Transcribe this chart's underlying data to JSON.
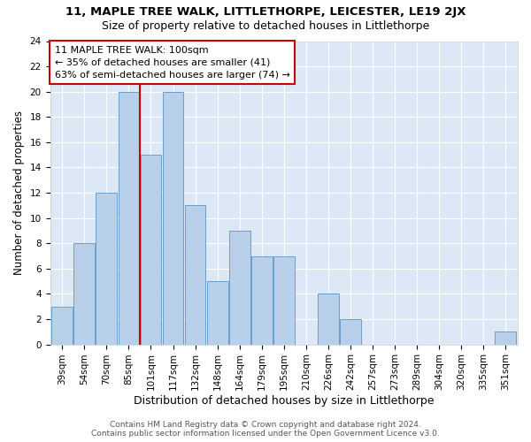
{
  "title": "11, MAPLE TREE WALK, LITTLETHORPE, LEICESTER, LE19 2JX",
  "subtitle": "Size of property relative to detached houses in Littlethorpe",
  "xlabel": "Distribution of detached houses by size in Littlethorpe",
  "ylabel": "Number of detached properties",
  "bar_labels": [
    "39sqm",
    "54sqm",
    "70sqm",
    "85sqm",
    "101sqm",
    "117sqm",
    "132sqm",
    "148sqm",
    "164sqm",
    "179sqm",
    "195sqm",
    "210sqm",
    "226sqm",
    "242sqm",
    "257sqm",
    "273sqm",
    "289sqm",
    "304sqm",
    "320sqm",
    "335sqm",
    "351sqm"
  ],
  "bar_values": [
    3,
    8,
    12,
    20,
    15,
    20,
    11,
    5,
    9,
    7,
    7,
    0,
    4,
    2,
    0,
    0,
    0,
    0,
    0,
    0,
    1
  ],
  "bar_color": "#b8d0ea",
  "bar_edgecolor": "#6a9fcc",
  "vline_index": 3.5,
  "vline_color": "#cc0000",
  "annotation_line1": "11 MAPLE TREE WALK: 100sqm",
  "annotation_line2": "← 35% of detached houses are smaller (41)",
  "annotation_line3": "63% of semi-detached houses are larger (74) →",
  "annotation_box_color": "#ffffff",
  "annotation_box_edgecolor": "#cc0000",
  "ylim": [
    0,
    24
  ],
  "yticks": [
    0,
    2,
    4,
    6,
    8,
    10,
    12,
    14,
    16,
    18,
    20,
    22,
    24
  ],
  "background_color": "#dce8f5",
  "footer_text": "Contains HM Land Registry data © Crown copyright and database right 2024.\nContains public sector information licensed under the Open Government Licence v3.0.",
  "title_fontsize": 9.5,
  "subtitle_fontsize": 9,
  "xlabel_fontsize": 9,
  "ylabel_fontsize": 8.5,
  "tick_fontsize": 7.5,
  "annotation_fontsize": 8,
  "footer_fontsize": 6.5
}
